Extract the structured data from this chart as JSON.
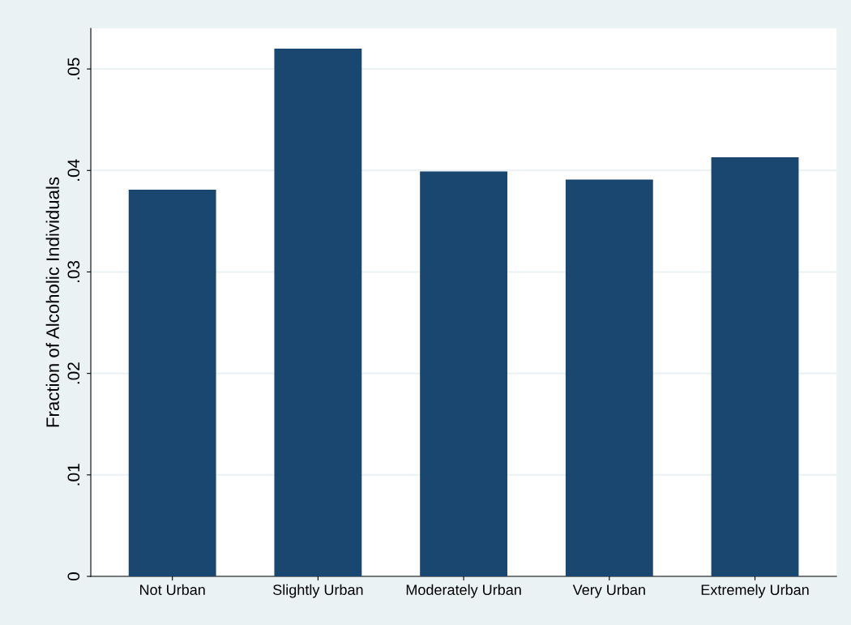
{
  "chart_data": {
    "type": "bar",
    "ylabel": "Fraction of Alcoholic Individuals",
    "categories": [
      "Not Urban",
      "Slightly Urban",
      "Moderately Urban",
      "Very Urban",
      "Extremely Urban"
    ],
    "values": [
      0.0381,
      0.052,
      0.0399,
      0.0391,
      0.0413
    ],
    "color": "#1a476f",
    "ylim": [
      0,
      0.054
    ],
    "yticks": [
      0,
      {
        "value": 0.01,
        "label": ".01"
      },
      {
        "value": 0.02,
        "label": ".02"
      },
      {
        "value": 0.03,
        "label": ".03"
      },
      {
        "value": 0.04,
        "label": ".04"
      },
      {
        "value": 0.05,
        "label": ".05"
      }
    ],
    "grid": "y",
    "legend": false
  }
}
